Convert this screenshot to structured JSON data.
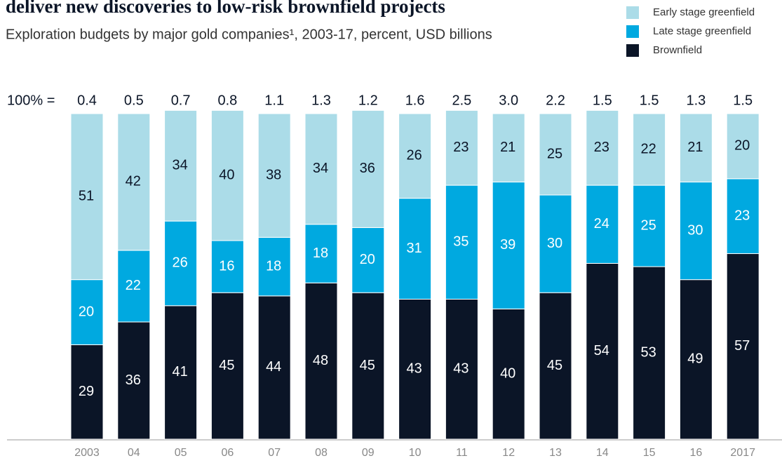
{
  "chart_data": {
    "type": "stacked_bar_100",
    "title": "deliver new discoveries to low-risk brownfield projects",
    "subtitle": "Exploration budgets by major gold companies¹, 2003-17, percent, USD billions",
    "totals_label": "100% =",
    "totals": {
      "values": [
        0.4,
        0.5,
        0.7,
        0.8,
        1.1,
        1.3,
        1.2,
        1.6,
        2.5,
        3.0,
        2.2,
        1.5,
        1.5,
        1.3,
        1.5
      ],
      "value_labels": [
        "0.4",
        "0.5",
        "0.7",
        "0.8",
        "1.1",
        "1.3",
        "1.2",
        "1.6",
        "2.5",
        "3.0",
        "2.2",
        "1.5",
        "1.5",
        "1.3",
        "1.5"
      ]
    },
    "categories": [
      "2003",
      "04",
      "05",
      "06",
      "07",
      "08",
      "09",
      "10",
      "11",
      "12",
      "13",
      "14",
      "15",
      "16",
      "2017"
    ],
    "series": [
      {
        "name": "Brownfield",
        "color": "#0b1527",
        "label_color": "#ffffff",
        "values": [
          29,
          36,
          41,
          45,
          44,
          48,
          45,
          43,
          43,
          40,
          45,
          54,
          53,
          49,
          57
        ]
      },
      {
        "name": "Late stage greenfield",
        "color": "#00a9e0",
        "label_color": "#ffffff",
        "values": [
          20,
          22,
          26,
          16,
          18,
          18,
          20,
          31,
          35,
          39,
          30,
          24,
          25,
          30,
          23
        ]
      },
      {
        "name": "Early stage greenfield",
        "color": "#abdce8",
        "label_color": "#0b1527",
        "values": [
          51,
          42,
          34,
          40,
          38,
          34,
          36,
          26,
          23,
          21,
          25,
          23,
          22,
          21,
          20
        ]
      }
    ],
    "ylim": [
      0,
      100
    ],
    "legend": "top-right"
  }
}
